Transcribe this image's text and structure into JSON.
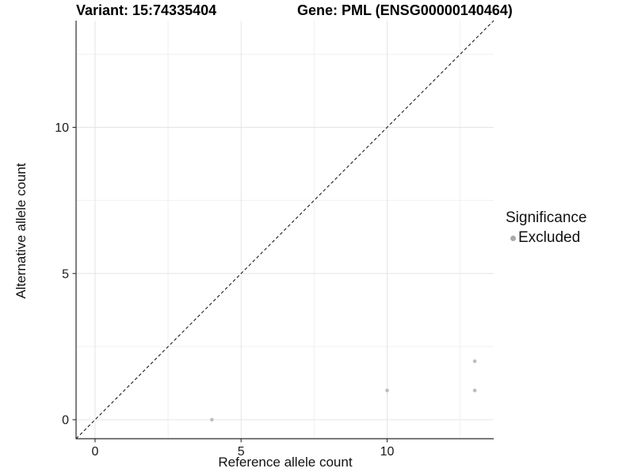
{
  "header": {
    "variant_title": "Variant: 15:74335404",
    "gene_title": "Gene: PML (ENSG00000140464)"
  },
  "chart_data": {
    "type": "scatter",
    "title": "Variant: 15:74335404 / Gene: PML (ENSG00000140464)",
    "xlabel": "Reference allele count",
    "ylabel": "Alternative allele count",
    "xlim": [
      -0.65,
      13.65
    ],
    "ylim": [
      -0.65,
      13.65
    ],
    "x_major_ticks": [
      0,
      5,
      10
    ],
    "y_major_ticks": [
      0,
      5,
      10
    ],
    "x_minor_gridlines": [
      2.5,
      7.5,
      12.5
    ],
    "y_minor_gridlines": [
      2.5,
      7.5,
      12.5
    ],
    "grid": "on",
    "series": [
      {
        "name": "Excluded",
        "color": "#bdbdbd",
        "points": [
          {
            "x": 4,
            "y": 0
          },
          {
            "x": 10,
            "y": 1
          },
          {
            "x": 13,
            "y": 1
          },
          {
            "x": 13,
            "y": 2
          }
        ]
      }
    ],
    "reference_line": {
      "kind": "identity",
      "style": "dashed",
      "from": {
        "x": -0.65,
        "y": -0.65
      },
      "to": {
        "x": 13.65,
        "y": 13.65
      },
      "color": "#1a1a1a"
    },
    "legend": {
      "title": "Significance",
      "position": "right",
      "entries": [
        {
          "label": "Excluded",
          "marker": "point",
          "color": "#a9a9a9"
        }
      ]
    },
    "colors": {
      "grid_major": "#e4e4e4",
      "grid_minor": "#f0f0f0",
      "axis_line": "#2b2b2b",
      "tick_text": "#1a1a1a",
      "background": "#ffffff"
    }
  }
}
